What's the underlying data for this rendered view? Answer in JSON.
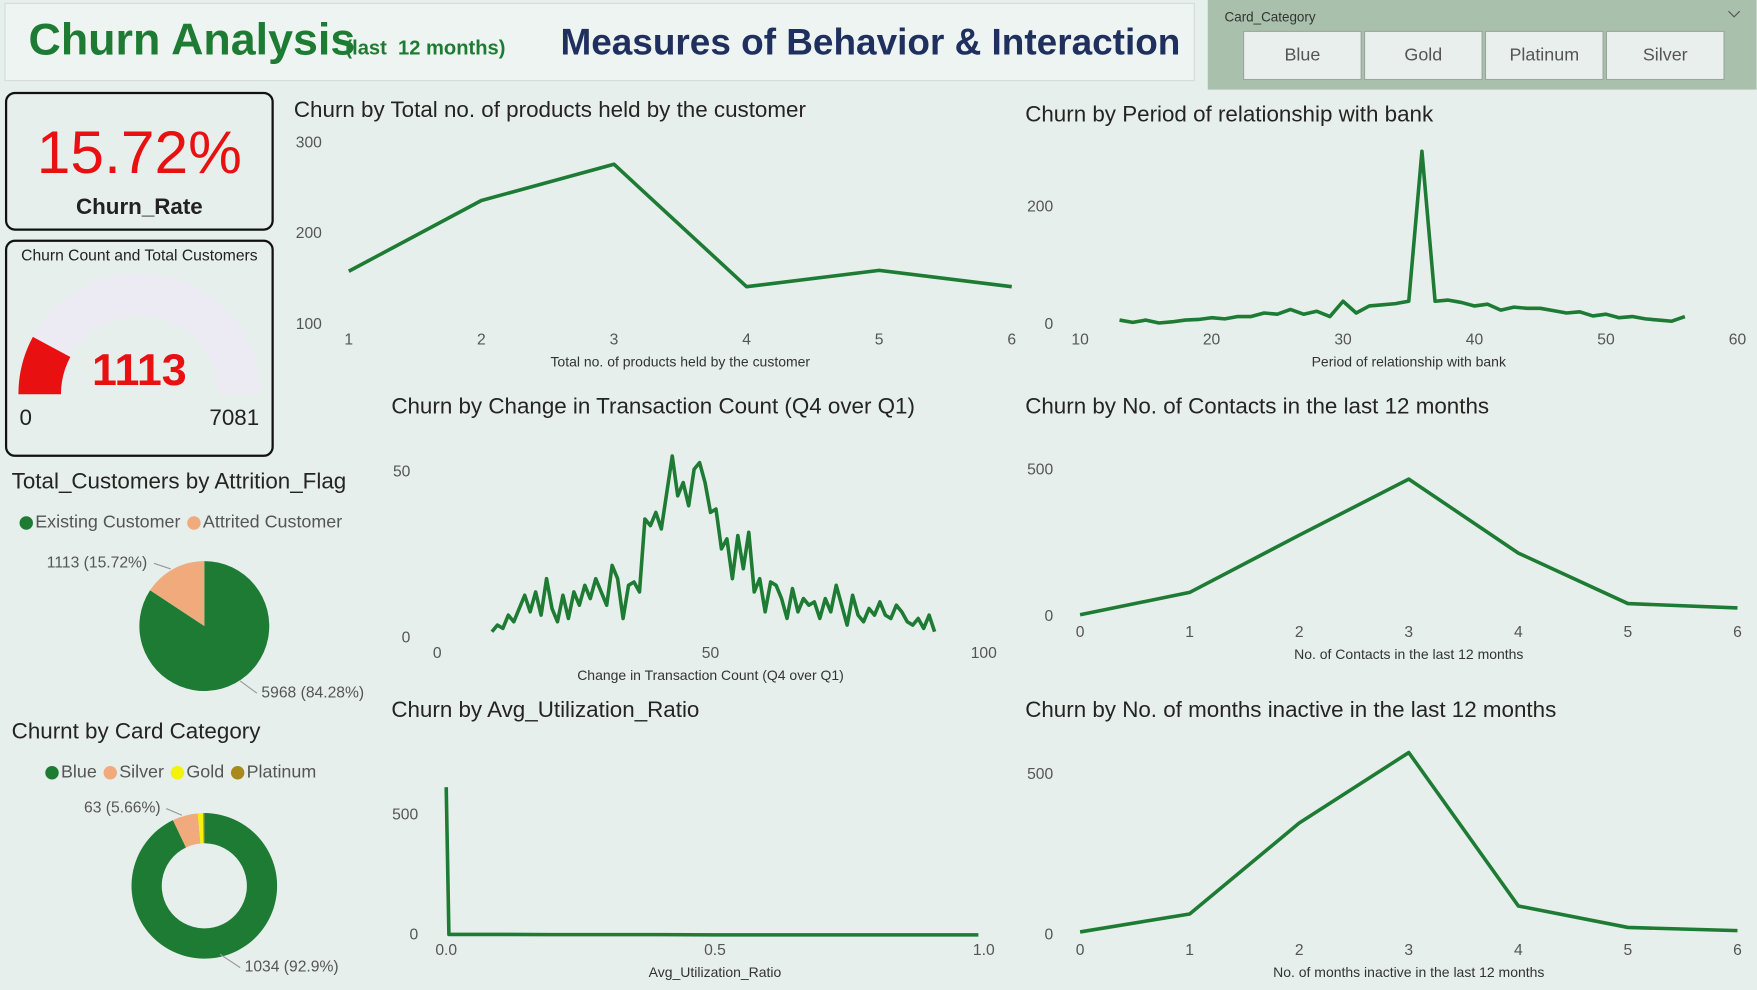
{
  "header": {
    "title": "Churn Analysis",
    "period": "(last  12 months)",
    "subtitle": "Measures of Behavior & Interaction"
  },
  "slicer": {
    "title": "Card_Category",
    "options": [
      "Blue",
      "Gold",
      "Platinum",
      "Silver"
    ]
  },
  "kpi": {
    "value": "15.72%",
    "label": "Churn_Rate"
  },
  "chart_data": [
    {
      "type": "gauge",
      "title": "Churn Count and Total Customers",
      "value": 1113,
      "min": 0,
      "max": 7081,
      "color": "#e81010",
      "track_color": "#ecebf4"
    },
    {
      "type": "pie",
      "title": "Total_Customers by Attrition_Flag",
      "categories": [
        "Existing Customer",
        "Attrited Customer"
      ],
      "values": [
        5968,
        1113
      ],
      "value_labels": [
        "5968 (84.28%)",
        "1113 (15.72%)"
      ],
      "colors": [
        "#1e7b34",
        "#f0aa7c"
      ]
    },
    {
      "type": "donut",
      "title": "Churnt by Card Category",
      "categories": [
        "Blue",
        "Silver",
        "Gold",
        "Platinum"
      ],
      "values": [
        1034,
        63,
        13,
        3
      ],
      "value_labels": [
        "1034 (92.9%)",
        "63 (5.66%)",
        null,
        null
      ],
      "colors": [
        "#1e7b34",
        "#f0aa7c",
        "#f2f20a",
        "#a88a1c"
      ]
    },
    {
      "type": "line",
      "title": "Churn by Total no. of products held by the customer",
      "x_label": "Total no. of products held by the customer",
      "x": [
        1,
        2,
        3,
        4,
        5,
        6
      ],
      "values": [
        159,
        237,
        277,
        142,
        160,
        142
      ],
      "color": "#1e7b34",
      "xlim": [
        1,
        6
      ],
      "ylim": [
        100,
        300
      ],
      "xticks": [
        1,
        2,
        3,
        4,
        5,
        6
      ],
      "yticks": [
        100,
        200,
        300
      ]
    },
    {
      "type": "line",
      "title": "Churn by Period of relationship with bank",
      "x_label": "Period of relationship with bank",
      "x": [
        13,
        14,
        15,
        16,
        17,
        18,
        19,
        20,
        21,
        22,
        23,
        24,
        25,
        26,
        27,
        28,
        29,
        30,
        31,
        32,
        33,
        34,
        35,
        36,
        37,
        38,
        39,
        40,
        41,
        42,
        43,
        44,
        45,
        46,
        47,
        48,
        49,
        50,
        51,
        52,
        53,
        54,
        55,
        56
      ],
      "values": [
        8,
        4,
        8,
        3,
        5,
        8,
        9,
        12,
        10,
        14,
        14,
        20,
        18,
        26,
        18,
        23,
        14,
        40,
        20,
        32,
        34,
        36,
        40,
        295,
        40,
        42,
        38,
        32,
        35,
        25,
        30,
        28,
        28,
        24,
        20,
        22,
        15,
        18,
        12,
        14,
        10,
        8,
        6,
        14
      ],
      "color": "#1e7b34",
      "xlim": [
        10,
        60
      ],
      "ylim": [
        0,
        300
      ],
      "xticks": [
        10,
        20,
        30,
        40,
        50,
        60
      ],
      "yticks": [
        0,
        200
      ]
    },
    {
      "type": "line",
      "title": "Churn by Change in Transaction Count (Q4 over Q1)",
      "x_label": "Change in Transaction Count (Q4 over Q1)",
      "x": [
        10,
        11,
        12,
        13,
        14,
        15,
        16,
        17,
        18,
        19,
        20,
        21,
        22,
        23,
        24,
        25,
        26,
        27,
        28,
        29,
        30,
        31,
        32,
        33,
        34,
        35,
        36,
        37,
        38,
        39,
        40,
        41,
        42,
        43,
        44,
        45,
        46,
        47,
        48,
        49,
        50,
        51,
        52,
        53,
        54,
        55,
        56,
        57,
        58,
        59,
        60,
        61,
        62,
        63,
        64,
        65,
        66,
        67,
        68,
        69,
        70,
        71,
        72,
        73,
        74,
        75,
        76,
        77,
        78,
        79,
        80,
        81,
        82,
        83,
        84,
        85,
        86,
        87,
        88,
        89,
        90,
        91
      ],
      "values": [
        2,
        4,
        3,
        7,
        5,
        9,
        13,
        8,
        14,
        7,
        18,
        9,
        5,
        13,
        6,
        14,
        10,
        16,
        12,
        18,
        14,
        10,
        22,
        18,
        6,
        16,
        17,
        14,
        36,
        34,
        38,
        33,
        44,
        55,
        43,
        47,
        40,
        51,
        53,
        47,
        38,
        39,
        27,
        30,
        18,
        31,
        21,
        32,
        14,
        18,
        8,
        17,
        16,
        12,
        6,
        15,
        8,
        12,
        10,
        11,
        6,
        12,
        8,
        16,
        10,
        4,
        13,
        7,
        5,
        9,
        7,
        11,
        7,
        6,
        10,
        8,
        5,
        4,
        6,
        3,
        7,
        2
      ],
      "color": "#1e7b34",
      "xlim": [
        0,
        100
      ],
      "ylim": [
        0,
        55
      ],
      "xticks": [
        0,
        50,
        100
      ],
      "yticks": [
        0,
        50
      ]
    },
    {
      "type": "line",
      "title": "Churn by No. of Contacts in the last 12 months",
      "x_label": "No. of Contacts in the last 12 months",
      "x": [
        0,
        1,
        2,
        3,
        4,
        5,
        6
      ],
      "values": [
        8,
        84,
        279,
        470,
        218,
        46,
        31
      ],
      "color": "#1e7b34",
      "xlim": [
        0,
        6
      ],
      "ylim": [
        0,
        530
      ],
      "xticks": [
        0,
        1,
        2,
        3,
        4,
        5,
        6
      ],
      "yticks": [
        0,
        500
      ]
    },
    {
      "type": "line",
      "title": "Churn by Avg_Utilization_Ratio",
      "x_label": "Avg_Utilization_Ratio",
      "x": [
        0,
        0.005,
        0.1,
        0.2,
        0.3,
        0.4,
        0.5,
        0.6,
        0.7,
        0.8,
        0.9,
        0.99
      ],
      "values": [
        617,
        3,
        3,
        2,
        2,
        2,
        1,
        1,
        1,
        1,
        1,
        1
      ],
      "color": "#1e7b34",
      "xlim": [
        0,
        1
      ],
      "ylim": [
        0,
        640
      ],
      "xticks": [
        {
          "value": 0,
          "label": "0.0"
        },
        {
          "value": 0.5,
          "label": "0.5"
        },
        {
          "value": 1,
          "label": "1.0"
        }
      ],
      "yticks": [
        0,
        500
      ]
    },
    {
      "type": "line",
      "title": "Churn by No. of months inactive in the last 12 months",
      "x_label": "No. of months inactive in the last 12 months",
      "x": [
        0,
        1,
        2,
        3,
        4,
        5,
        6
      ],
      "values": [
        10,
        66,
        350,
        570,
        91,
        24,
        14
      ],
      "color": "#1e7b34",
      "xlim": [
        0,
        6
      ],
      "ylim": [
        0,
        600
      ],
      "xticks": [
        0,
        1,
        2,
        3,
        4,
        5,
        6
      ],
      "yticks": [
        0,
        500
      ]
    }
  ]
}
